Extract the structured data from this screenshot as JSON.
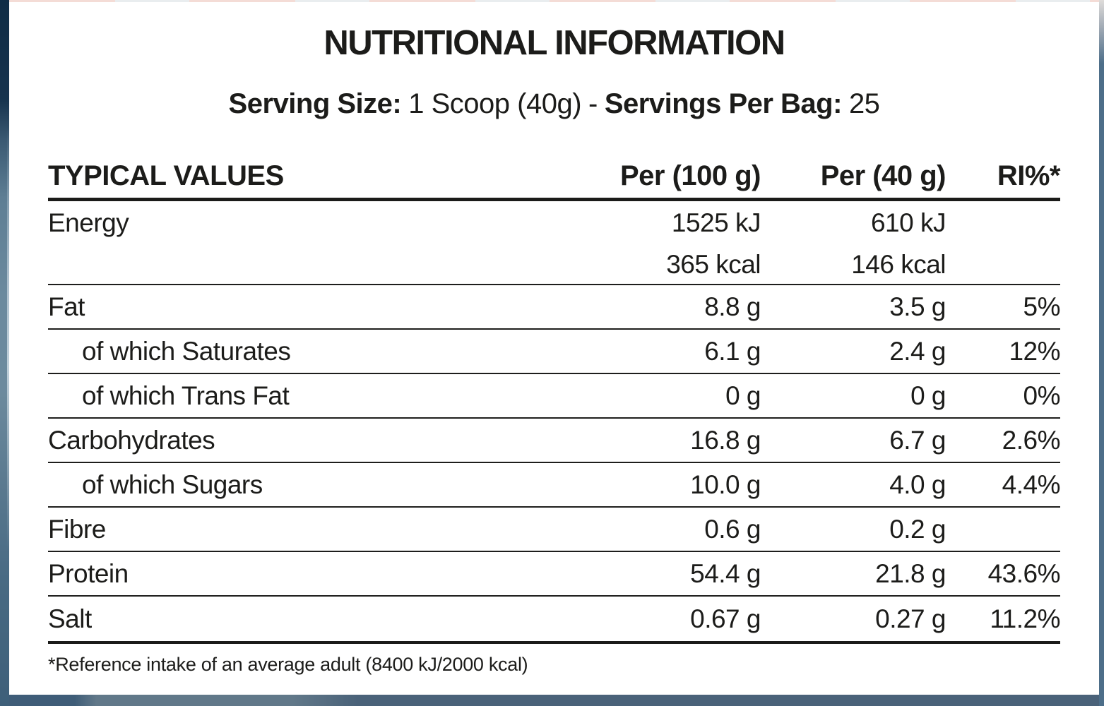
{
  "colors": {
    "text": "#1c1c1a",
    "rule_color": "#1b1b19",
    "panel_bg": "#ffffff",
    "package_navy": "#0f2c46",
    "package_slate_highlight": "#6b8a9e",
    "package_bottom_strip": "#4a6279",
    "package_right_strip": "#4d6e89",
    "top_edge_pink": "#f4dcd6",
    "top_edge_gray": "#e9edef"
  },
  "panel": {
    "title": "NUTRITIONAL INFORMATION",
    "serving": {
      "size_label": "Serving Size:",
      "size_value": "1 Scoop (40g)",
      "separator": "-",
      "per_bag_label": "Servings Per Bag:",
      "per_bag_value": "25"
    },
    "table": {
      "headers": [
        "TYPICAL VALUES",
        "Per (100 g)",
        "Per (40 g)",
        "RI%*"
      ],
      "rows": [
        {
          "label": "Energy",
          "p100": "1525 kJ",
          "p40": "610 kJ",
          "ri": ""
        },
        {
          "label": "",
          "p100": "365 kcal",
          "p40": "146 kcal",
          "ri": ""
        },
        {
          "label": "Fat",
          "p100": "8.8 g",
          "p40": "3.5 g",
          "ri": "5%"
        },
        {
          "label": "of which Saturates",
          "p100": "6.1 g",
          "p40": "2.4 g",
          "ri": "12%"
        },
        {
          "label": "of which Trans Fat",
          "p100": "0 g",
          "p40": "0 g",
          "ri": "0%"
        },
        {
          "label": "Carbohydrates",
          "p100": "16.8 g",
          "p40": "6.7 g",
          "ri": "2.6%"
        },
        {
          "label": "of which Sugars",
          "p100": "10.0 g",
          "p40": "4.0 g",
          "ri": "4.4%"
        },
        {
          "label": "Fibre",
          "p100": "0.6 g",
          "p40": "0.2 g",
          "ri": ""
        },
        {
          "label": "Protein",
          "p100": "54.4 g",
          "p40": "21.8 g",
          "ri": "43.6%"
        },
        {
          "label": "Salt",
          "p100": "0.67 g",
          "p40": "0.27 g",
          "ri": "11.2%"
        }
      ]
    },
    "footnote": "*Reference intake of an average adult (8400 kJ/2000 kcal)"
  }
}
